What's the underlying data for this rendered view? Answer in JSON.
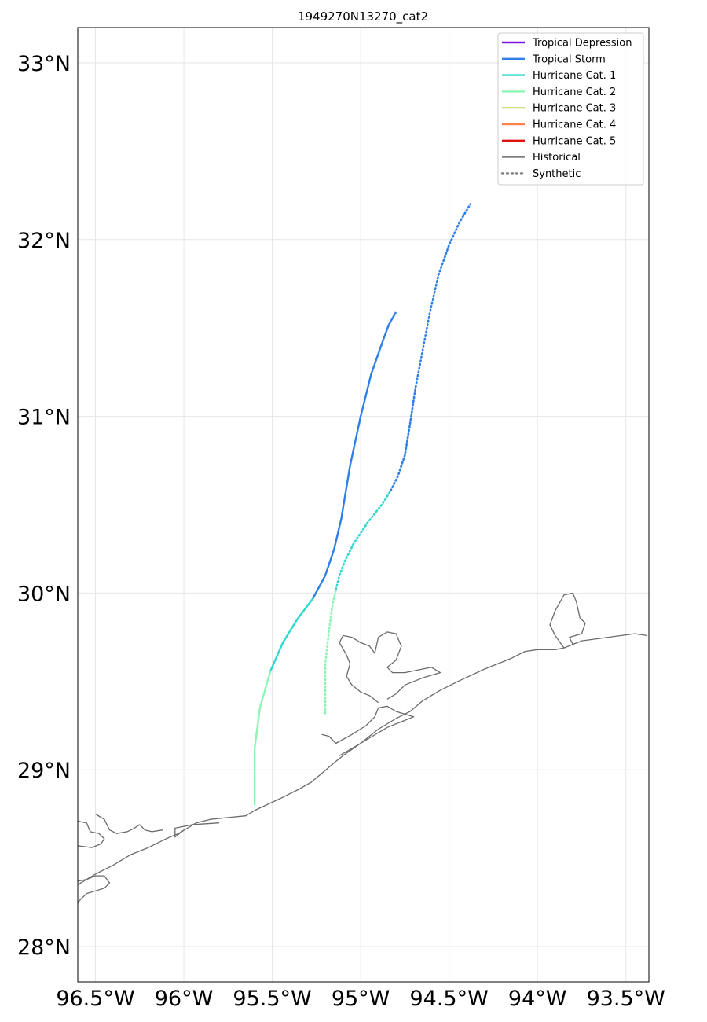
{
  "title": "1949270N13270_cat2",
  "map": {
    "lon_range": [
      -96.6,
      -93.37
    ],
    "lat_range": [
      27.8,
      33.2
    ],
    "x_ticks": [
      {
        "value": -96.5,
        "label": "96.5°W"
      },
      {
        "value": -96.0,
        "label": "96°W"
      },
      {
        "value": -95.5,
        "label": "95.5°W"
      },
      {
        "value": -95.0,
        "label": "95°W"
      },
      {
        "value": -94.5,
        "label": "94.5°W"
      },
      {
        "value": -94.0,
        "label": "94°W"
      },
      {
        "value": -93.5,
        "label": "93.5°W"
      }
    ],
    "y_ticks": [
      {
        "value": 28,
        "label": "28°N"
      },
      {
        "value": 29,
        "label": "29°N"
      },
      {
        "value": 30,
        "label": "30°N"
      },
      {
        "value": 31,
        "label": "31°N"
      },
      {
        "value": 32,
        "label": "32°N"
      },
      {
        "value": 33,
        "label": "33°N"
      }
    ],
    "grid": true,
    "coastline_color": "#6b6b6b"
  },
  "legend": {
    "position": "top-right",
    "entries": [
      {
        "label": "Tropical Depression",
        "color": "#7a16e0",
        "style": "solid"
      },
      {
        "label": "Tropical Storm",
        "color": "#2e7fe8",
        "style": "solid"
      },
      {
        "label": "Hurricane Cat. 1",
        "color": "#2ed8cf",
        "style": "solid"
      },
      {
        "label": "Hurricane Cat. 2",
        "color": "#8ef5b4",
        "style": "solid"
      },
      {
        "label": "Hurricane Cat. 3",
        "color": "#d4dd88",
        "style": "solid"
      },
      {
        "label": "Hurricane Cat. 4",
        "color": "#ff8250",
        "style": "solid"
      },
      {
        "label": "Hurricane Cat. 5",
        "color": "#e0120c",
        "style": "solid"
      },
      {
        "label": "Historical",
        "color": "#808080",
        "style": "solid"
      },
      {
        "label": "Synthetic",
        "color": "#808080",
        "style": "dotted"
      }
    ]
  },
  "chart_data": {
    "type": "line",
    "series": [
      {
        "name": "Historical",
        "style": "solid",
        "segments": [
          {
            "category": "Hurricane Cat. 2",
            "color": "#8ef5b4",
            "points": [
              [
                -95.6,
                28.8
              ],
              [
                -95.6,
                29.12
              ],
              [
                -95.57,
                29.35
              ],
              [
                -95.51,
                29.56
              ]
            ]
          },
          {
            "category": "Hurricane Cat. 1",
            "color": "#2ed8cf",
            "points": [
              [
                -95.51,
                29.56
              ],
              [
                -95.44,
                29.72
              ],
              [
                -95.36,
                29.85
              ],
              [
                -95.27,
                29.97
              ]
            ]
          },
          {
            "category": "Tropical Storm",
            "color": "#2e7fe8",
            "points": [
              [
                -95.27,
                29.97
              ],
              [
                -95.2,
                30.1
              ],
              [
                -95.15,
                30.25
              ],
              [
                -95.11,
                30.42
              ],
              [
                -95.06,
                30.72
              ],
              [
                -95.0,
                31.0
              ],
              [
                -94.94,
                31.24
              ],
              [
                -94.87,
                31.44
              ],
              [
                -94.84,
                31.52
              ],
              [
                -94.8,
                31.59
              ]
            ]
          }
        ]
      },
      {
        "name": "Synthetic",
        "style": "dotted",
        "segments": [
          {
            "category": "Hurricane Cat. 2",
            "color": "#8ef5b4",
            "points": [
              [
                -95.2,
                29.32
              ],
              [
                -95.2,
                29.6
              ],
              [
                -95.18,
                29.78
              ],
              [
                -95.16,
                29.93
              ],
              [
                -95.14,
                30.02
              ]
            ]
          },
          {
            "category": "Hurricane Cat. 1",
            "color": "#2ed8cf",
            "points": [
              [
                -95.14,
                30.02
              ],
              [
                -95.12,
                30.1
              ],
              [
                -95.09,
                30.18
              ],
              [
                -95.04,
                30.28
              ],
              [
                -94.96,
                30.4
              ],
              [
                -94.88,
                30.5
              ],
              [
                -94.83,
                30.58
              ]
            ]
          },
          {
            "category": "Tropical Storm",
            "color": "#2e7fe8",
            "points": [
              [
                -94.83,
                30.58
              ],
              [
                -94.79,
                30.66
              ],
              [
                -94.75,
                30.78
              ],
              [
                -94.72,
                30.96
              ],
              [
                -94.69,
                31.16
              ],
              [
                -94.65,
                31.37
              ],
              [
                -94.61,
                31.58
              ],
              [
                -94.56,
                31.8
              ],
              [
                -94.5,
                31.97
              ],
              [
                -94.44,
                32.1
              ],
              [
                -94.38,
                32.2
              ]
            ]
          }
        ]
      }
    ]
  },
  "coastlines": [
    [
      [
        -95.6,
        28.77
      ],
      [
        -95.45,
        28.84
      ],
      [
        -95.35,
        28.89
      ],
      [
        -95.28,
        28.93
      ],
      [
        -95.22,
        28.98
      ],
      [
        -95.15,
        29.04
      ],
      [
        -95.1,
        29.08
      ],
      [
        -95.0,
        29.15
      ],
      [
        -94.9,
        29.23
      ],
      [
        -94.8,
        29.29
      ],
      [
        -94.72,
        29.33
      ],
      [
        -94.65,
        29.39
      ],
      [
        -94.55,
        29.45
      ],
      [
        -94.45,
        29.5
      ],
      [
        -94.3,
        29.57
      ],
      [
        -94.15,
        29.63
      ],
      [
        -94.07,
        29.67
      ],
      [
        -94.0,
        29.68
      ],
      [
        -93.9,
        29.68
      ],
      [
        -93.85,
        29.69
      ],
      [
        -93.75,
        29.73
      ],
      [
        -93.6,
        29.75
      ],
      [
        -93.45,
        29.77
      ],
      [
        -93.38,
        29.76
      ]
    ],
    [
      [
        -95.6,
        28.77
      ],
      [
        -95.65,
        28.74
      ],
      [
        -95.75,
        28.73
      ],
      [
        -95.85,
        28.72
      ],
      [
        -95.93,
        28.7
      ],
      [
        -96.03,
        28.64
      ],
      [
        -96.1,
        28.61
      ],
      [
        -96.2,
        28.56
      ],
      [
        -96.3,
        28.52
      ],
      [
        -96.4,
        28.46
      ],
      [
        -96.5,
        28.41
      ],
      [
        -96.6,
        28.35
      ]
    ],
    [
      [
        -95.8,
        28.7
      ],
      [
        -95.95,
        28.69
      ],
      [
        -96.05,
        28.67
      ],
      [
        -96.05,
        28.62
      ],
      [
        -96.0,
        28.66
      ]
    ],
    [
      [
        -96.6,
        28.25
      ],
      [
        -96.55,
        28.3
      ],
      [
        -96.45,
        28.33
      ],
      [
        -96.42,
        28.36
      ],
      [
        -96.45,
        28.4
      ],
      [
        -96.5,
        28.4
      ],
      [
        -96.55,
        28.38
      ],
      [
        -96.6,
        28.37
      ]
    ],
    [
      [
        -96.6,
        28.71
      ],
      [
        -96.55,
        28.7
      ],
      [
        -96.53,
        28.65
      ],
      [
        -96.48,
        28.64
      ],
      [
        -96.45,
        28.61
      ],
      [
        -96.47,
        28.58
      ],
      [
        -96.52,
        28.56
      ],
      [
        -96.6,
        28.57
      ]
    ],
    [
      [
        -96.5,
        28.75
      ],
      [
        -96.45,
        28.72
      ],
      [
        -96.42,
        28.66
      ],
      [
        -96.38,
        28.64
      ],
      [
        -96.32,
        28.65
      ],
      [
        -96.28,
        28.67
      ],
      [
        -96.25,
        28.69
      ],
      [
        -96.22,
        28.66
      ],
      [
        -96.18,
        28.65
      ],
      [
        -96.12,
        28.66
      ]
    ],
    [
      [
        -95.22,
        29.2
      ],
      [
        -95.18,
        29.19
      ],
      [
        -95.14,
        29.15
      ],
      [
        -95.05,
        29.2
      ],
      [
        -94.97,
        29.25
      ],
      [
        -94.92,
        29.3
      ],
      [
        -94.9,
        29.35
      ],
      [
        -94.85,
        29.36
      ],
      [
        -94.8,
        29.33
      ],
      [
        -94.7,
        29.3
      ],
      [
        -94.85,
        29.24
      ],
      [
        -95.0,
        29.15
      ],
      [
        -95.12,
        29.08
      ]
    ],
    [
      [
        -94.9,
        29.38
      ],
      [
        -94.95,
        29.42
      ],
      [
        -95.0,
        29.44
      ],
      [
        -95.05,
        29.48
      ],
      [
        -95.08,
        29.53
      ],
      [
        -95.06,
        29.6
      ],
      [
        -95.08,
        29.65
      ],
      [
        -95.12,
        29.72
      ],
      [
        -95.1,
        29.76
      ],
      [
        -95.05,
        29.75
      ],
      [
        -95.0,
        29.72
      ],
      [
        -94.95,
        29.7
      ],
      [
        -94.92,
        29.66
      ],
      [
        -94.9,
        29.75
      ],
      [
        -94.85,
        29.78
      ],
      [
        -94.8,
        29.77
      ],
      [
        -94.77,
        29.7
      ],
      [
        -94.8,
        29.62
      ],
      [
        -94.85,
        29.58
      ],
      [
        -94.82,
        29.55
      ],
      [
        -94.75,
        29.55
      ],
      [
        -94.6,
        29.58
      ],
      [
        -94.55,
        29.55
      ],
      [
        -94.65,
        29.52
      ],
      [
        -94.75,
        29.48
      ],
      [
        -94.8,
        29.43
      ],
      [
        -94.85,
        29.4
      ]
    ],
    [
      [
        -93.85,
        29.69
      ],
      [
        -93.9,
        29.76
      ],
      [
        -93.93,
        29.82
      ],
      [
        -93.9,
        29.9
      ],
      [
        -93.85,
        29.99
      ],
      [
        -93.8,
        30.0
      ],
      [
        -93.78,
        29.95
      ],
      [
        -93.76,
        29.86
      ],
      [
        -93.73,
        29.83
      ],
      [
        -93.75,
        29.77
      ],
      [
        -93.82,
        29.75
      ],
      [
        -93.8,
        29.71
      ]
    ]
  ]
}
